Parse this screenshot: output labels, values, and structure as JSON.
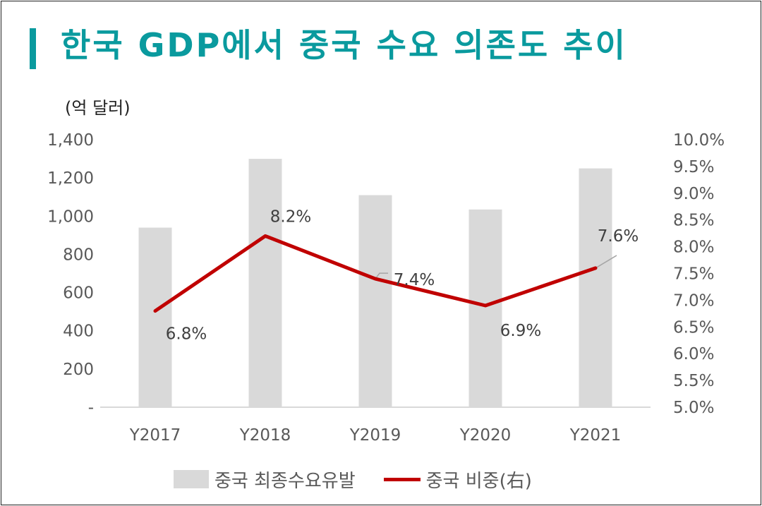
{
  "title": "한국 GDP에서 중국 수요 의존도 추이",
  "unit_label": "(억 달러)",
  "colors": {
    "title": "#0a9a9e",
    "bar": "#d9d9d9",
    "line": "#c00000",
    "axis": "#d9d9d9",
    "tick_text": "#595959"
  },
  "chart_data": {
    "type": "bar",
    "categories": [
      "Y2017",
      "Y2018",
      "Y2019",
      "Y2020",
      "Y2021"
    ],
    "series": [
      {
        "name": "중국 최종수요유발",
        "type": "bar",
        "axis": "left",
        "values": [
          940,
          1300,
          1110,
          1035,
          1250
        ]
      },
      {
        "name": "중국 비중(右)",
        "type": "line",
        "axis": "right",
        "values": [
          6.8,
          8.2,
          7.4,
          6.9,
          7.6
        ],
        "labels": [
          "6.8%",
          "8.2%",
          "7.4%",
          "6.9%",
          "7.6%"
        ]
      }
    ],
    "y_left": {
      "range": [
        0,
        1400
      ],
      "ticks": [
        0,
        200,
        400,
        600,
        800,
        1000,
        1200,
        1400
      ],
      "tick_labels": [
        "-",
        "200",
        "400",
        "600",
        "800",
        "1,000",
        "1,200",
        "1,400"
      ],
      "label": "(억 달러)"
    },
    "y_right": {
      "range": [
        5.0,
        10.0
      ],
      "ticks": [
        5.0,
        5.5,
        6.0,
        6.5,
        7.0,
        7.5,
        8.0,
        8.5,
        9.0,
        9.5,
        10.0
      ],
      "tick_labels": [
        "5.0%",
        "5.5%",
        "6.0%",
        "6.5%",
        "7.0%",
        "7.5%",
        "8.0%",
        "8.5%",
        "9.0%",
        "9.5%",
        "10.0%"
      ]
    },
    "grid": false,
    "legend": "bottom"
  }
}
